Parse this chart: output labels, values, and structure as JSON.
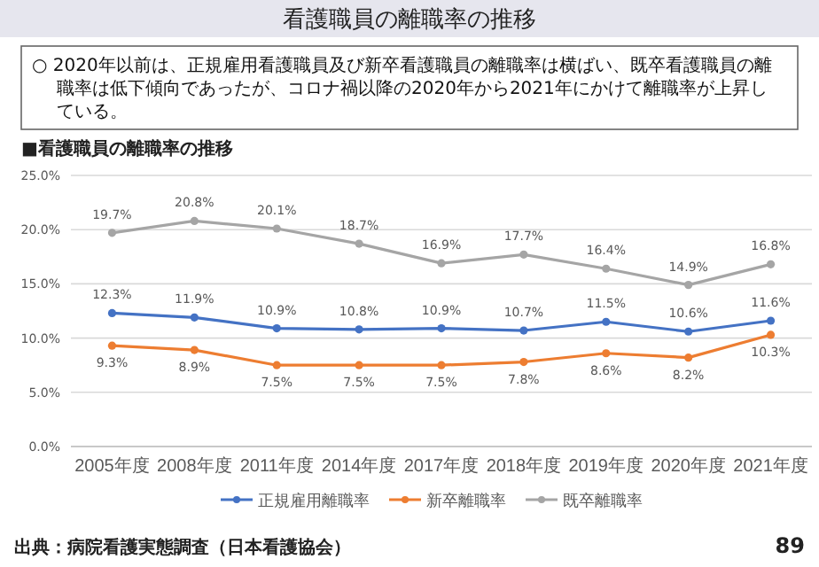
{
  "chart_data": {
    "type": "line",
    "title": "看護職員の離職率の推移",
    "subtitle": "■看護職員の離職率の推移",
    "annotations": [
      "○ 2020年以前は、正規雇用看護職員及び新卒看護職員の離職率は横ばい、既卒看護職員の離職率は低下傾向であったが、コロナ禍以降の2020年から2021年にかけて離職率が上昇している。",
      "出典：病院看護実態調査（日本看護協会）",
      "89"
    ],
    "categories": [
      "2005年度",
      "2008年度",
      "2011年度",
      "2014年度",
      "2017年度",
      "2018年度",
      "2019年度",
      "2020年度",
      "2021年度"
    ],
    "series": [
      {
        "name": "正規雇用離職率",
        "color": "#4472c4",
        "values": [
          12.3,
          11.9,
          10.9,
          10.8,
          10.9,
          10.7,
          11.5,
          10.6,
          11.6
        ],
        "value_labels": [
          "12.3%",
          "11.9%",
          "10.9%",
          "10.8%",
          "10.9%",
          "10.7%",
          "11.5%",
          "10.6%",
          "11.6%"
        ]
      },
      {
        "name": "新卒離職率",
        "color": "#ed7d31",
        "values": [
          9.3,
          8.9,
          7.5,
          7.5,
          7.5,
          7.8,
          8.6,
          8.2,
          10.3
        ],
        "value_labels": [
          "9.3%",
          "8.9%",
          "7.5%",
          "7.5%",
          "7.5%",
          "7.8%",
          "8.6%",
          "8.2%",
          "10.3%"
        ]
      },
      {
        "name": "既卒離職率",
        "color": "#a5a5a5",
        "values": [
          19.7,
          20.8,
          20.1,
          18.7,
          16.9,
          17.7,
          16.4,
          14.9,
          16.8
        ],
        "value_labels": [
          "19.7%",
          "20.8%",
          "20.1%",
          "18.7%",
          "16.9%",
          "17.7%",
          "16.4%",
          "14.9%",
          "16.8%"
        ]
      }
    ],
    "ylim": [
      0,
      25
    ],
    "yticks": [
      {
        "value": 0,
        "label": "0.0%"
      },
      {
        "value": 5,
        "label": "5.0%"
      },
      {
        "value": 10,
        "label": "10.0%"
      },
      {
        "value": 15,
        "label": "15.0%"
      },
      {
        "value": 20,
        "label": "20.0%"
      },
      {
        "value": 25,
        "label": "25.0%"
      }
    ],
    "grid": "y",
    "legend": "bottom",
    "marker": "circle",
    "line_style": "solid"
  }
}
